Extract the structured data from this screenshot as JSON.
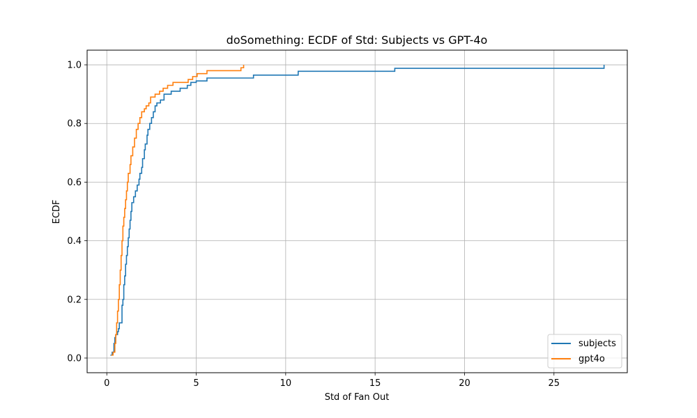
{
  "chart_data": {
    "type": "line",
    "step": true,
    "title": "doSomething: ECDF of Std: Subjects vs GPT-4o",
    "xlabel": "Std of Fan Out",
    "ylabel": "ECDF",
    "xlim": [
      -1.1,
      29.1
    ],
    "ylim": [
      -0.05,
      1.05
    ],
    "xticks": [
      0,
      5,
      10,
      15,
      20,
      25
    ],
    "yticks": [
      0.0,
      0.2,
      0.4,
      0.6,
      0.8,
      1.0
    ],
    "xtick_labels": [
      "0",
      "5",
      "10",
      "15",
      "20",
      "25"
    ],
    "ytick_labels": [
      "0.0",
      "0.2",
      "0.4",
      "0.6",
      "0.8",
      "1.0"
    ],
    "grid": true,
    "legend_position": "lower-right",
    "series": [
      {
        "name": "subjects",
        "color": "#1f77b4",
        "points": [
          [
            0.2,
            0.01
          ],
          [
            0.3,
            0.02
          ],
          [
            0.4,
            0.05
          ],
          [
            0.45,
            0.07
          ],
          [
            0.5,
            0.08
          ],
          [
            0.6,
            0.09
          ],
          [
            0.65,
            0.1
          ],
          [
            0.7,
            0.12
          ],
          [
            0.85,
            0.18
          ],
          [
            0.9,
            0.2
          ],
          [
            0.95,
            0.25
          ],
          [
            1.0,
            0.28
          ],
          [
            1.05,
            0.32
          ],
          [
            1.1,
            0.35
          ],
          [
            1.15,
            0.38
          ],
          [
            1.2,
            0.41
          ],
          [
            1.25,
            0.44
          ],
          [
            1.3,
            0.47
          ],
          [
            1.35,
            0.5
          ],
          [
            1.4,
            0.53
          ],
          [
            1.5,
            0.55
          ],
          [
            1.6,
            0.57
          ],
          [
            1.7,
            0.59
          ],
          [
            1.8,
            0.61
          ],
          [
            1.85,
            0.63
          ],
          [
            1.95,
            0.65
          ],
          [
            2.0,
            0.68
          ],
          [
            2.1,
            0.71
          ],
          [
            2.15,
            0.73
          ],
          [
            2.25,
            0.76
          ],
          [
            2.3,
            0.78
          ],
          [
            2.4,
            0.8
          ],
          [
            2.5,
            0.82
          ],
          [
            2.6,
            0.84
          ],
          [
            2.7,
            0.86
          ],
          [
            2.8,
            0.87
          ],
          [
            3.0,
            0.88
          ],
          [
            3.2,
            0.9
          ],
          [
            3.6,
            0.91
          ],
          [
            4.1,
            0.92
          ],
          [
            4.5,
            0.93
          ],
          [
            4.7,
            0.94
          ],
          [
            5.0,
            0.945
          ],
          [
            5.6,
            0.955
          ],
          [
            8.2,
            0.965
          ],
          [
            10.7,
            0.978
          ],
          [
            16.1,
            0.988
          ],
          [
            27.8,
            1.0
          ]
        ]
      },
      {
        "name": "gpt4o",
        "color": "#ff7f0e",
        "points": [
          [
            0.25,
            0.01
          ],
          [
            0.35,
            0.02
          ],
          [
            0.45,
            0.05
          ],
          [
            0.5,
            0.08
          ],
          [
            0.55,
            0.12
          ],
          [
            0.6,
            0.16
          ],
          [
            0.65,
            0.2
          ],
          [
            0.7,
            0.25
          ],
          [
            0.75,
            0.3
          ],
          [
            0.8,
            0.35
          ],
          [
            0.85,
            0.4
          ],
          [
            0.9,
            0.45
          ],
          [
            0.95,
            0.48
          ],
          [
            1.0,
            0.51
          ],
          [
            1.05,
            0.54
          ],
          [
            1.1,
            0.57
          ],
          [
            1.15,
            0.6
          ],
          [
            1.2,
            0.63
          ],
          [
            1.3,
            0.66
          ],
          [
            1.35,
            0.69
          ],
          [
            1.45,
            0.72
          ],
          [
            1.55,
            0.75
          ],
          [
            1.65,
            0.78
          ],
          [
            1.75,
            0.8
          ],
          [
            1.85,
            0.82
          ],
          [
            1.95,
            0.84
          ],
          [
            2.1,
            0.85
          ],
          [
            2.2,
            0.86
          ],
          [
            2.35,
            0.87
          ],
          [
            2.45,
            0.89
          ],
          [
            2.7,
            0.9
          ],
          [
            2.95,
            0.91
          ],
          [
            3.15,
            0.92
          ],
          [
            3.4,
            0.93
          ],
          [
            3.7,
            0.94
          ],
          [
            4.55,
            0.95
          ],
          [
            4.8,
            0.96
          ],
          [
            5.05,
            0.97
          ],
          [
            5.6,
            0.98
          ],
          [
            7.5,
            0.99
          ],
          [
            7.65,
            1.0
          ]
        ]
      }
    ]
  }
}
